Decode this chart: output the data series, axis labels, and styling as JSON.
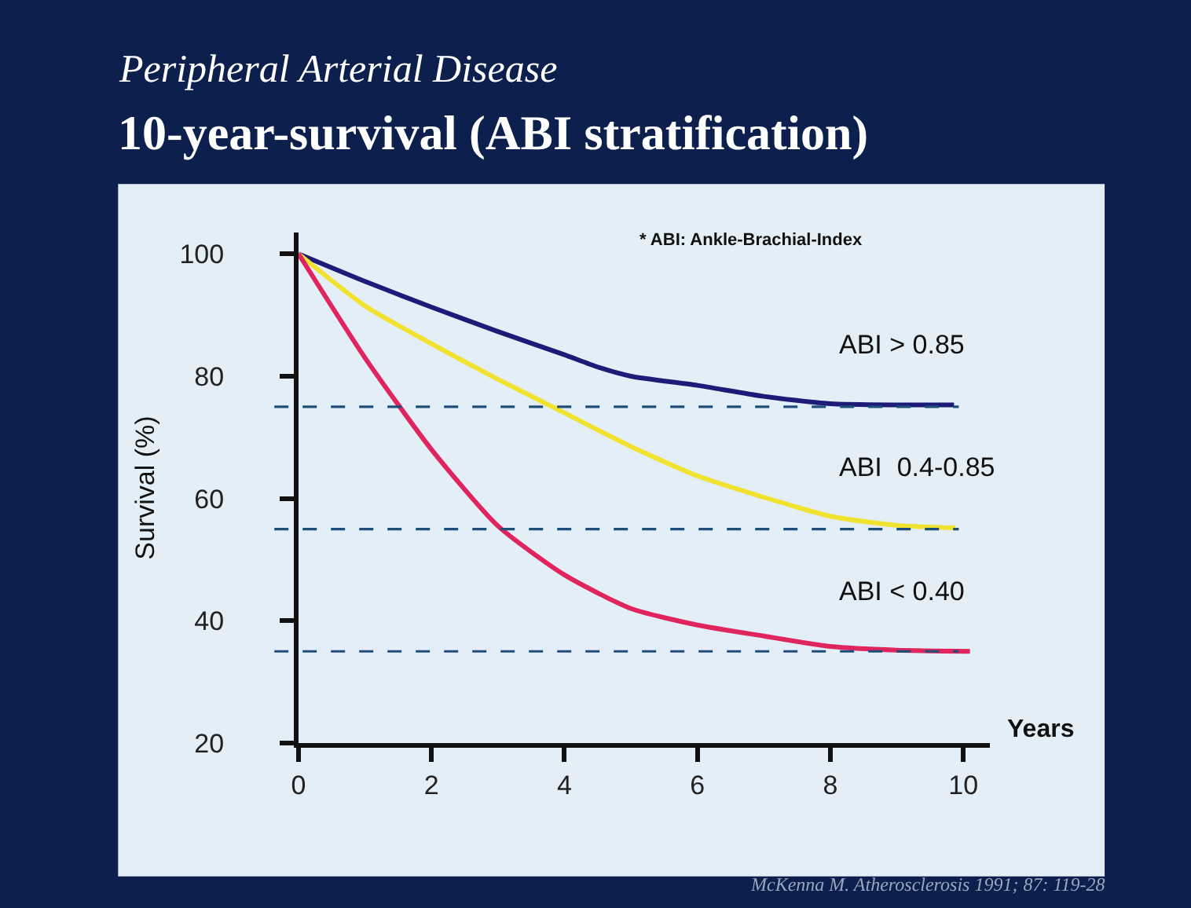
{
  "chart_data": {
    "type": "line",
    "subtitle": "Peripheral Arterial Disease",
    "title": "10-year-survival (ABI stratification)",
    "xlabel": "Years",
    "ylabel": "Survival (%)",
    "xlim": [
      0,
      10.4
    ],
    "xticks": [
      0,
      2,
      4,
      6,
      8,
      10
    ],
    "ylim": [
      20,
      103.5
    ],
    "yticks": [
      20,
      40,
      60,
      80,
      100
    ],
    "grid": false,
    "legend": false,
    "marker": "none",
    "line_style": "solid",
    "series": [
      {
        "name": "ABI > 0.85",
        "color": "#1e1a78",
        "x": [
          0,
          1,
          2,
          3,
          4,
          4.5,
          5,
          6,
          7,
          8,
          9,
          9.86
        ],
        "values": [
          100,
          95.5,
          91.3,
          87.3,
          83.5,
          81.5,
          80,
          78.5,
          76.7,
          75.5,
          75.3,
          75.3
        ]
      },
      {
        "name": "ABI  0.4-0.85",
        "color": "#f0e22e",
        "x": [
          0,
          1,
          2,
          3,
          4,
          5,
          6,
          7,
          8,
          9,
          9.88
        ],
        "values": [
          100,
          91.5,
          85.3,
          79.5,
          74,
          68.5,
          63.7,
          60.2,
          57.1,
          55.6,
          55.2
        ]
      },
      {
        "name": "ABI < 0.40",
        "color": "#e0245e",
        "x": [
          0,
          1,
          2,
          3,
          4,
          5,
          6,
          7,
          8,
          9,
          10.1
        ],
        "values": [
          100,
          83,
          68,
          55.5,
          47.5,
          42,
          39.3,
          37.5,
          35.8,
          35.2,
          35
        ]
      }
    ],
    "ref_lines": [
      {
        "axis": "y",
        "value": 75,
        "color": "#1f4e79",
        "line_style": "dashed"
      },
      {
        "axis": "y",
        "value": 55,
        "color": "#1f4e79",
        "line_style": "dashed"
      },
      {
        "axis": "y",
        "value": 35,
        "color": "#1f4e79",
        "line_style": "dashed"
      }
    ],
    "annotations": [
      "* ABI: Ankle-Brachial-Index",
      "McKenna M. Atherosclerosis 1991; 87: 119-28"
    ]
  }
}
